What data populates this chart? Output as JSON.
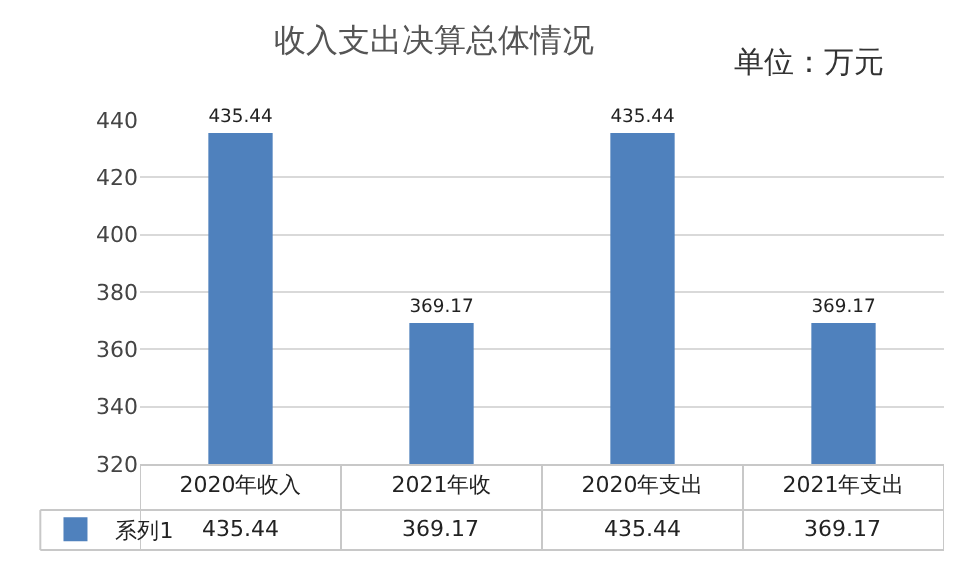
{
  "chart_data": {
    "type": "bar",
    "title": "收入支出决算总体情况",
    "annotations": [
      "单位：万元",
      "435.44",
      "369.17",
      "435.44",
      "369.17"
    ],
    "categories": [
      "2020年收入",
      "2021年收",
      "2020年支出",
      "2021年支出"
    ],
    "series": [
      {
        "name": "系列1",
        "color": "#4f81bd",
        "values": [
          435.44,
          369.17,
          435.44,
          369.17
        ]
      }
    ],
    "ylim": [
      320,
      440
    ],
    "yticks": [
      320,
      340,
      360,
      380,
      400,
      420,
      440
    ],
    "grid": "y",
    "legend": "bottom left",
    "data_labels": true
  }
}
